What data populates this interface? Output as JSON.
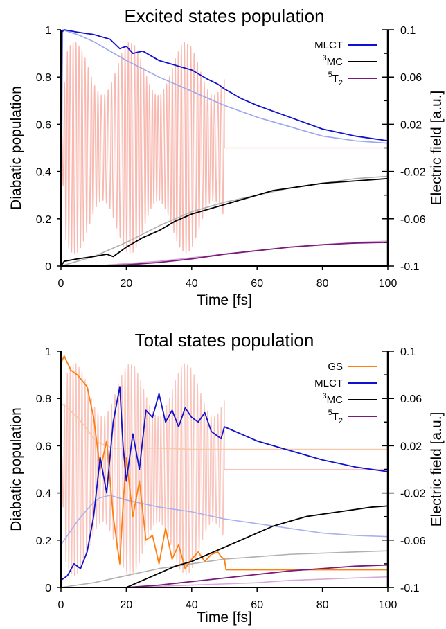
{
  "chart_data": [
    {
      "type": "line",
      "title": "Excited states population",
      "xlabel": "Time [fs]",
      "ylabel": "Diabatic population",
      "y2label": "Electric field [a.u.]",
      "xlim": [
        0,
        100
      ],
      "ylim": [
        0,
        1
      ],
      "y2lim": [
        -0.1,
        0.1
      ],
      "xticks": [
        "0",
        "20",
        "40",
        "60",
        "80",
        "100"
      ],
      "yticks": [
        "0",
        "0.2",
        "0.4",
        "0.6",
        "0.8",
        "1"
      ],
      "y2ticks": [
        "-0.1",
        "-0.06",
        "-0.02",
        "0.02",
        "0.06",
        "0.1"
      ],
      "grid": false,
      "legend_position": "top-right",
      "legend": [
        {
          "base": "MLCT",
          "sup": "",
          "sub": "",
          "color": "#1010d0"
        },
        {
          "base": "MC",
          "sup": "3",
          "sub": "",
          "color": "#000000"
        },
        {
          "base": "T",
          "sup": "5",
          "sub": "2",
          "color": "#7a1a7a"
        }
      ],
      "series": [
        {
          "name": "MLCT",
          "color": "#1010d0",
          "style": "solid",
          "x": [
            0,
            0.3,
            1,
            5,
            10,
            15,
            18,
            20,
            22,
            25,
            30,
            35,
            40,
            45,
            48,
            50,
            55,
            60,
            70,
            80,
            90,
            100
          ],
          "y": [
            0,
            0.99,
            1.0,
            0.99,
            0.98,
            0.96,
            0.92,
            0.93,
            0.9,
            0.91,
            0.87,
            0.85,
            0.83,
            0.79,
            0.77,
            0.75,
            0.71,
            0.68,
            0.63,
            0.58,
            0.55,
            0.53
          ]
        },
        {
          "name": "3MC",
          "color": "#000000",
          "style": "solid",
          "x": [
            0,
            1,
            5,
            10,
            14,
            16,
            20,
            25,
            30,
            35,
            40,
            45,
            50,
            55,
            60,
            65,
            70,
            75,
            80,
            90,
            100
          ],
          "y": [
            0,
            0.02,
            0.03,
            0.04,
            0.05,
            0.04,
            0.08,
            0.12,
            0.15,
            0.19,
            0.22,
            0.24,
            0.26,
            0.28,
            0.3,
            0.32,
            0.33,
            0.34,
            0.35,
            0.36,
            0.37
          ]
        },
        {
          "name": "5T2",
          "color": "#7a1a7a",
          "style": "solid",
          "x": [
            0,
            10,
            20,
            30,
            40,
            50,
            60,
            70,
            80,
            90,
            100
          ],
          "y": [
            0,
            0.0,
            0.005,
            0.015,
            0.03,
            0.05,
            0.065,
            0.08,
            0.09,
            0.097,
            0.1
          ]
        },
        {
          "name": "",
          "color": "#9aa6ee",
          "style": "faint",
          "x": [
            0,
            0.5,
            5,
            10,
            20,
            30,
            40,
            50,
            60,
            70,
            80,
            90,
            100
          ],
          "y": [
            0,
            1.0,
            0.98,
            0.95,
            0.87,
            0.8,
            0.74,
            0.68,
            0.63,
            0.59,
            0.55,
            0.53,
            0.52
          ]
        },
        {
          "name": "",
          "color": "#b0b0b0",
          "style": "faint",
          "x": [
            0,
            5,
            10,
            20,
            30,
            40,
            50,
            60,
            70,
            80,
            90,
            100
          ],
          "y": [
            0,
            0.02,
            0.04,
            0.1,
            0.17,
            0.23,
            0.27,
            0.3,
            0.33,
            0.35,
            0.37,
            0.38
          ]
        },
        {
          "name": "",
          "color": "#d4a0d4",
          "style": "faint",
          "x": [
            0,
            10,
            20,
            30,
            40,
            50,
            60,
            70,
            80,
            90,
            100
          ],
          "y": [
            0,
            0.0,
            0.01,
            0.02,
            0.035,
            0.05,
            0.065,
            0.08,
            0.09,
            0.1,
            0.105
          ]
        }
      ],
      "field": {
        "color": "#f8b8b0",
        "t_end": 50,
        "amplitude": 0.09,
        "baseline": 0.0
      }
    },
    {
      "type": "line",
      "title": "Total states population",
      "xlabel": "Time [fs]",
      "ylabel": "Diabatic population",
      "y2label": "Electric field [a.u.]",
      "xlim": [
        0,
        100
      ],
      "ylim": [
        0,
        1
      ],
      "y2lim": [
        -0.1,
        0.1
      ],
      "xticks": [
        "0",
        "20",
        "40",
        "60",
        "80",
        "100"
      ],
      "yticks": [
        "0",
        "0.2",
        "0.4",
        "0.6",
        "0.8",
        "1"
      ],
      "y2ticks": [
        "-0.1",
        "-0.06",
        "-0.02",
        "0.02",
        "0.06",
        "0.1"
      ],
      "grid": false,
      "legend_position": "top-right",
      "legend": [
        {
          "base": "GS",
          "sup": "",
          "sub": "",
          "color": "#ff7f0e"
        },
        {
          "base": "MLCT",
          "sup": "",
          "sub": "",
          "color": "#1010d0"
        },
        {
          "base": "MC",
          "sup": "3",
          "sub": "",
          "color": "#000000"
        },
        {
          "base": "T",
          "sup": "5",
          "sub": "2",
          "color": "#7a1a7a"
        }
      ],
      "series": [
        {
          "name": "GS",
          "color": "#ff7f0e",
          "style": "solid",
          "x": [
            0,
            1,
            3,
            5,
            8,
            10,
            12,
            14,
            16,
            18,
            19,
            20,
            22,
            24,
            26,
            28,
            30,
            32,
            34,
            36,
            38,
            40,
            42,
            44,
            46,
            48,
            49,
            50,
            50.5,
            60,
            70,
            80,
            90,
            100
          ],
          "y": [
            0.95,
            0.98,
            0.92,
            0.9,
            0.85,
            0.72,
            0.5,
            0.62,
            0.3,
            0.1,
            0.35,
            0.55,
            0.3,
            0.45,
            0.2,
            0.22,
            0.1,
            0.25,
            0.12,
            0.18,
            0.08,
            0.12,
            0.15,
            0.11,
            0.14,
            0.15,
            0.13,
            0.12,
            0.075,
            0.075,
            0.075,
            0.075,
            0.075,
            0.075
          ]
        },
        {
          "name": "MLCT",
          "color": "#1010d0",
          "style": "solid",
          "x": [
            0,
            2,
            4,
            6,
            8,
            10,
            12,
            14,
            16,
            18,
            19,
            20,
            22,
            24,
            26,
            28,
            30,
            32,
            34,
            36,
            38,
            40,
            42,
            44,
            46,
            48,
            49,
            50,
            55,
            60,
            70,
            80,
            90,
            100
          ],
          "y": [
            0.03,
            0.05,
            0.1,
            0.08,
            0.15,
            0.3,
            0.55,
            0.4,
            0.7,
            0.85,
            0.6,
            0.45,
            0.65,
            0.5,
            0.75,
            0.72,
            0.82,
            0.7,
            0.75,
            0.68,
            0.76,
            0.72,
            0.7,
            0.74,
            0.66,
            0.64,
            0.63,
            0.68,
            0.65,
            0.62,
            0.58,
            0.54,
            0.51,
            0.49
          ]
        },
        {
          "name": "3MC",
          "color": "#000000",
          "style": "solid",
          "x": [
            0,
            20,
            25,
            30,
            35,
            40,
            45,
            50,
            55,
            60,
            65,
            70,
            75,
            80,
            85,
            90,
            95,
            100
          ],
          "y": [
            0,
            0.0,
            0.03,
            0.06,
            0.09,
            0.11,
            0.14,
            0.17,
            0.2,
            0.23,
            0.26,
            0.28,
            0.3,
            0.31,
            0.32,
            0.33,
            0.34,
            0.345
          ]
        },
        {
          "name": "5T2",
          "color": "#7a1a7a",
          "style": "solid",
          "x": [
            0,
            20,
            30,
            40,
            50,
            60,
            70,
            80,
            90,
            100
          ],
          "y": [
            0,
            0.0,
            0.01,
            0.025,
            0.04,
            0.055,
            0.07,
            0.08,
            0.09,
            0.095
          ]
        },
        {
          "name": "",
          "color": "#f5c8a8",
          "style": "faint",
          "x": [
            0,
            2,
            5,
            8,
            10,
            12,
            14,
            16,
            20,
            30,
            40,
            50,
            60,
            70,
            80,
            90,
            100
          ],
          "y": [
            0.78,
            0.76,
            0.72,
            0.67,
            0.63,
            0.61,
            0.6,
            0.59,
            0.59,
            0.59,
            0.585,
            0.585,
            0.585,
            0.585,
            0.585,
            0.585,
            0.585
          ]
        },
        {
          "name": "",
          "color": "#a8b0f0",
          "style": "faint",
          "x": [
            0,
            2,
            5,
            8,
            10,
            12,
            15,
            20,
            30,
            40,
            50,
            60,
            70,
            80,
            90,
            100
          ],
          "y": [
            0.18,
            0.22,
            0.28,
            0.33,
            0.36,
            0.38,
            0.39,
            0.37,
            0.34,
            0.32,
            0.29,
            0.27,
            0.25,
            0.23,
            0.22,
            0.215
          ]
        },
        {
          "name": "",
          "color": "#b0b0b0",
          "style": "faint",
          "x": [
            0,
            10,
            20,
            30,
            40,
            50,
            60,
            70,
            80,
            90,
            100
          ],
          "y": [
            0,
            0.02,
            0.05,
            0.08,
            0.1,
            0.12,
            0.13,
            0.14,
            0.145,
            0.15,
            0.155
          ]
        },
        {
          "name": "",
          "color": "#d8a8d8",
          "style": "faint",
          "x": [
            0,
            20,
            30,
            40,
            50,
            60,
            70,
            80,
            90,
            100
          ],
          "y": [
            0,
            0.0,
            0.005,
            0.01,
            0.015,
            0.02,
            0.03,
            0.035,
            0.04,
            0.045
          ]
        }
      ],
      "field": {
        "color": "#f8c4bc",
        "t_end": 50,
        "amplitude": 0.09,
        "baseline": 0.0
      }
    }
  ]
}
